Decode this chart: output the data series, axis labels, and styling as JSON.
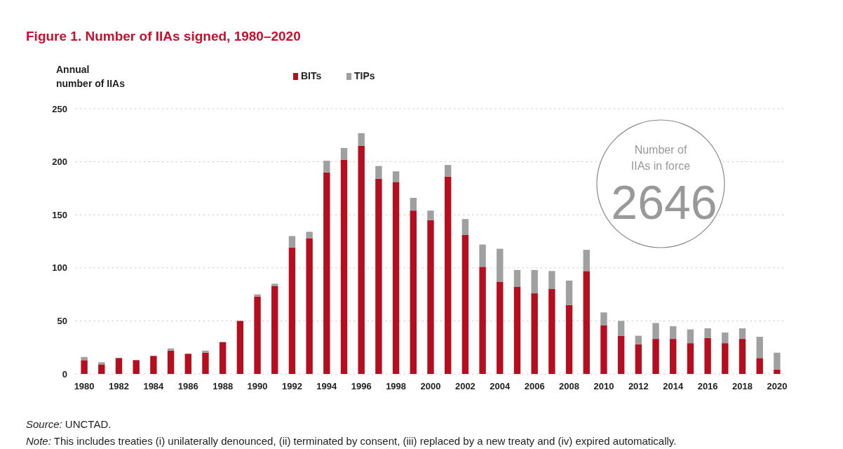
{
  "chart_data": {
    "type": "bar",
    "stacked": true,
    "title": "Figure 1. Number of IIAs signed, 1980–2020",
    "ylabel": "Annual number of IIAs",
    "categories": [
      "1980",
      null,
      "1982",
      null,
      "1984",
      null,
      "1986",
      null,
      "1988",
      null,
      "1990",
      null,
      "1992",
      null,
      "1994",
      null,
      "1996",
      null,
      "1998",
      null,
      "2000",
      null,
      "2002",
      null,
      "2004",
      null,
      "2006",
      null,
      "2008",
      null,
      "2010",
      null,
      "2012",
      null,
      "2014",
      null,
      "2016",
      null,
      "2018",
      null,
      "2020"
    ],
    "series": [
      {
        "name": "BITs",
        "color": "#b50f1f",
        "values": [
          13,
          9,
          15,
          13,
          17,
          22,
          19,
          20,
          30,
          50,
          73,
          83,
          119,
          128,
          190,
          202,
          215,
          184,
          181,
          154,
          145,
          186,
          131,
          101,
          87,
          82,
          76,
          80,
          65,
          97,
          46,
          36,
          28,
          33,
          33,
          29,
          34,
          29,
          33,
          15,
          4
        ]
      },
      {
        "name": "TIPs",
        "color": "#a0a0a0",
        "values": [
          3,
          2,
          0,
          0,
          0,
          2,
          0,
          2,
          0,
          0,
          2,
          2,
          11,
          6,
          11,
          11,
          12,
          12,
          10,
          12,
          9,
          11,
          15,
          21,
          31,
          16,
          22,
          17,
          23,
          20,
          12,
          14,
          8,
          15,
          12,
          13,
          9,
          10,
          10,
          20,
          16
        ]
      }
    ],
    "ylim": [
      0,
      250
    ],
    "yticks": [
      0,
      50,
      100,
      150,
      200,
      250
    ],
    "grid": "y",
    "legend": "top",
    "annotations": [
      "Number of IIAs in force",
      "2646",
      "Source: UNCTAD.",
      "Note: This includes treaties (i) unilaterally denounced, (ii) terminated by consent, (iii) replaced by a new treaty and (iv) expired automatically."
    ]
  }
}
